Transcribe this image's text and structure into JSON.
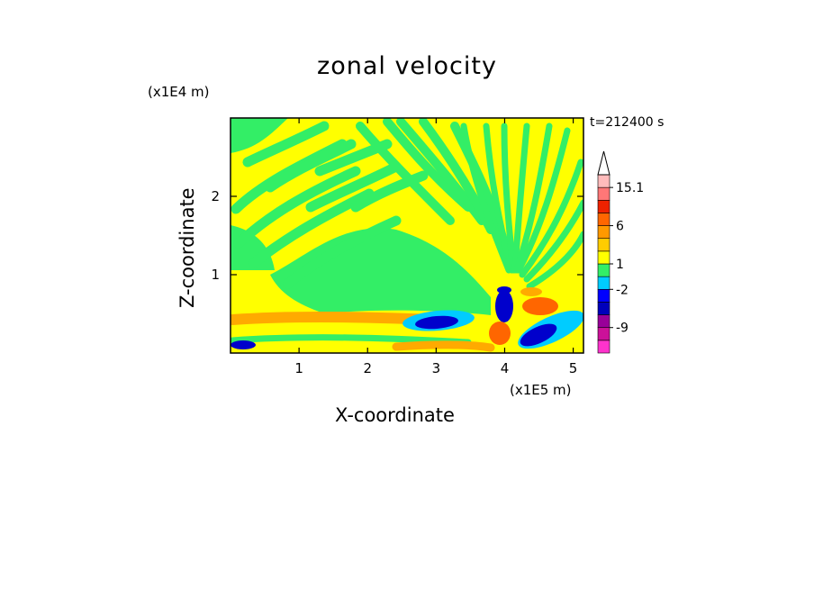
{
  "chart_data": {
    "type": "heatmap",
    "title": "zonal velocity",
    "xlabel": "X-coordinate",
    "ylabel": "Z-coordinate",
    "x_unit_label": "(x1E5 m)",
    "y_unit_label": "(x1E4 m)",
    "time_label": "t=212400 s",
    "xlim": [
      0,
      5.15
    ],
    "ylim": [
      0,
      3.0
    ],
    "x_ticks": [
      1,
      2,
      3,
      4,
      5
    ],
    "y_ticks": [
      1,
      2
    ],
    "colorbar": {
      "labeled_levels": [
        "15.1",
        "6",
        "1",
        "-2",
        "-9"
      ],
      "colors": [
        "#ff33cc",
        "#cc1199",
        "#990099",
        "#0000bb",
        "#0000ff",
        "#00ccff",
        "#33ee66",
        "#ffff00",
        "#ffcc00",
        "#ff9900",
        "#ff6600",
        "#ee2200",
        "#ff7777",
        "#ffbbbb"
      ],
      "extend_max": true
    },
    "background_value_colors": {
      "dominant_yellow": "#ffff00",
      "green": "#33ee66",
      "orange": "#ffaa00",
      "cyan": "#00ccff",
      "blue": "#0000cc",
      "red_orange": "#ff6600"
    }
  }
}
